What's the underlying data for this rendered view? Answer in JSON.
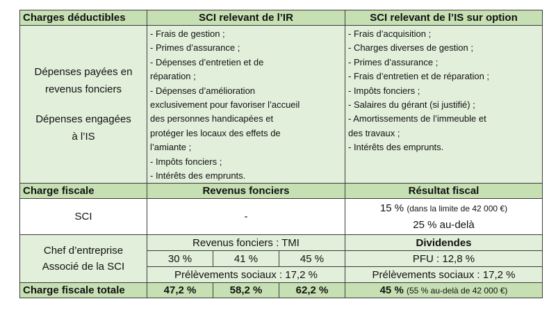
{
  "header1": {
    "col1": "Charges déductibles",
    "col2": "SCI relevant de l’IR",
    "col3": "SCI relevant de l’IS sur option"
  },
  "depenses": {
    "label_line1": "Dépenses payées en",
    "label_line2": "revenus fonciers",
    "label_line3": "Dépenses engagées",
    "label_line4": "à l’IS",
    "ir_list": [
      "- Frais de gestion ;",
      "- Primes d’assurance ;",
      "- Dépenses d’entretien et de",
      "réparation ;",
      "- Dépenses d’amélioration",
      "exclusivement pour favoriser l’accueil",
      "des personnes handicapées et",
      "protéger les locaux des effets de",
      "l’amiante ;",
      "- Impôts fonciers ;",
      "- Intérêts des emprunts."
    ],
    "is_list": [
      "- Frais d’acquisition ;",
      "- Charges diverses de gestion ;",
      "- Primes d’assurance ;",
      "- Frais d’entretien et de réparation ;",
      "- Impôts fonciers ;",
      "- Salaires du gérant (si justifié) ;",
      "- Amortissements de l’immeuble et",
      "des travaux ;",
      "- Intérêts des emprunts."
    ]
  },
  "header2": {
    "col1": "Charge fiscale",
    "col2": "Revenus fonciers",
    "col3": "Résultat fiscal"
  },
  "sci": {
    "label": "SCI",
    "ir_value": "-",
    "is_rate1": "15 %",
    "is_rate1_note": "(dans la limite de 42 000 €)",
    "is_rate2": "25 % au-delà"
  },
  "chef": {
    "label_line1": "Chef d’entreprise",
    "label_line2": "Associé de la SCI",
    "tmi_label": "Revenus fonciers : TMI",
    "tmi_rates": [
      "30 %",
      "41 %",
      "45 %"
    ],
    "ps_ir": "Prélèvements sociaux : 17,2 %",
    "dividendes": "Dividendes",
    "pfu": "PFU : 12,8 %",
    "ps_is": "Prélèvements sociaux : 17,2 %"
  },
  "total": {
    "label": "Charge fiscale totale",
    "values": [
      "47,2 %",
      "58,2 %",
      "62,2 %"
    ],
    "is_value": "45 %",
    "is_note": "(55 % au-delà de 42 000 €)"
  }
}
